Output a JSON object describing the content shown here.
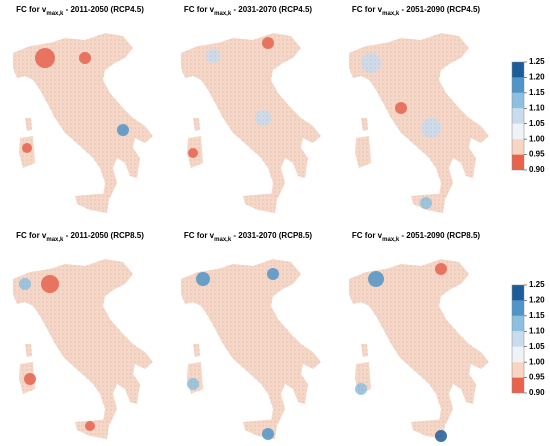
{
  "panels": [
    {
      "title": {
        "main": "FC for v",
        "sub": "max,k",
        "rest": " - 2011-2050 (RCP4.5)"
      }
    },
    {
      "title": {
        "main": "FC for v",
        "sub": "max,k",
        "rest": " - 2031-2070 (RCP4.5)"
      }
    },
    {
      "title": {
        "main": "FC for v",
        "sub": "max,k",
        "rest": " - 2051-2090 (RCP4.5)"
      }
    },
    {
      "title": {
        "main": "FC for v",
        "sub": "max,k",
        "rest": " - 2011-2050 (RCP8.5)"
      }
    },
    {
      "title": {
        "main": "FC for v",
        "sub": "max,k",
        "rest": " - 2031-2070 (RCP8.5)"
      }
    },
    {
      "title": {
        "main": "FC for v",
        "sub": "max,k",
        "rest": " - 2051-2090 (RCP8.5)"
      }
    }
  ],
  "colorbars": [
    {
      "ticks": [
        {
          "value": 0.9,
          "label": "0.90"
        },
        0.95,
        {
          "value": 1.0,
          "label": "1.00"
        },
        1.05,
        {
          "value": 1.1,
          "label": "1.10"
        },
        1.15,
        {
          "value": 1.2,
          "label": "1.20"
        },
        1.25
      ],
      "colors": [
        "#e8624c",
        "#f8d4c2",
        "#eef3f8",
        "#c8dcee",
        "#8dbfe0",
        "#4f95c8",
        "#1d5c9b"
      ]
    },
    {
      "ticks": [
        {
          "value": 0.9,
          "label": "0.90"
        },
        0.95,
        {
          "value": 1.0,
          "label": "1.00"
        },
        1.05,
        {
          "value": 1.1,
          "label": "1.10"
        },
        1.15,
        {
          "value": 1.2,
          "label": "1.20"
        },
        1.25
      ],
      "colors": [
        "#e8624c",
        "#f8d4c2",
        "#eef3f8",
        "#c8dcee",
        "#8dbfe0",
        "#4f95c8",
        "#1d5c9b"
      ]
    }
  ]
}
